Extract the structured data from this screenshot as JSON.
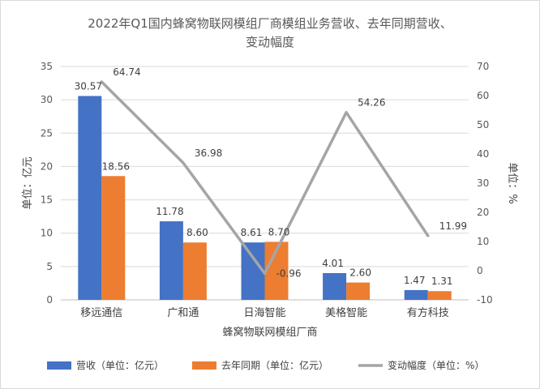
{
  "chart_data": {
    "type": "bar",
    "title_line1": "2022年Q1国内蜂窝物联网模组厂商模组业务营收、去年同期营收、",
    "title_line2": "变动幅度",
    "xlabel": "蜂窝物联网模组厂商",
    "ylabel": "单位：亿元",
    "y2label": "单位：%",
    "categories": [
      "移远通信",
      "广和通",
      "日海智能",
      "美格智能",
      "有方科技"
    ],
    "ylim": [
      0,
      35
    ],
    "yticks": [
      0,
      5,
      10,
      15,
      20,
      25,
      30,
      35
    ],
    "y2lim": [
      -10,
      70
    ],
    "y2ticks": [
      -10,
      0,
      10,
      20,
      30,
      40,
      50,
      60,
      70
    ],
    "series": [
      {
        "name": "营收（单位：亿元）",
        "type": "bar",
        "color": "#4472c4",
        "values": [
          30.57,
          11.78,
          8.61,
          4.01,
          1.47
        ],
        "labels": [
          "30.57",
          "11.78",
          "8.61",
          "4.01",
          "1.47"
        ]
      },
      {
        "name": "去年同期（单位：亿元）",
        "type": "bar",
        "color": "#ed7d31",
        "values": [
          18.56,
          8.6,
          8.7,
          2.6,
          1.31
        ],
        "labels": [
          "18.56",
          "8.60",
          "8.70",
          "2.60",
          "1.31"
        ]
      },
      {
        "name": "变动幅度（单位：%）",
        "type": "line",
        "axis": "secondary",
        "color": "#a5a5a5",
        "values": [
          64.74,
          36.98,
          -0.96,
          54.26,
          11.99
        ],
        "labels": [
          "64.74",
          "36.98",
          "-0.96",
          "54.26",
          "11.99"
        ]
      }
    ],
    "grid": true,
    "legend_position": "bottom"
  }
}
